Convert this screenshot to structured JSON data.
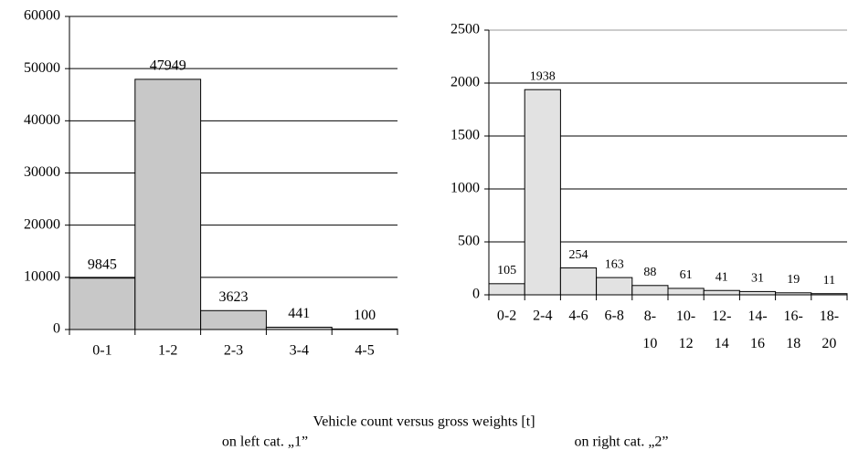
{
  "chart_data": [
    {
      "type": "bar",
      "categories": [
        "0-1",
        "1-2",
        "2-3",
        "3-4",
        "4-5"
      ],
      "values": [
        9845,
        47949,
        3623,
        441,
        100
      ],
      "color": "#c8c8c8",
      "ylim": [
        0,
        60000
      ],
      "yticks": [
        0,
        10000,
        20000,
        30000,
        40000,
        50000,
        60000
      ],
      "grid": true
    },
    {
      "type": "bar",
      "categories": [
        "0-2",
        "2-4",
        "4-6",
        "6-8",
        "8-10",
        "10-12",
        "12-14",
        "14-16",
        "16-18",
        "18-20"
      ],
      "values": [
        105,
        1938,
        254,
        163,
        88,
        61,
        41,
        31,
        19,
        11
      ],
      "color": "#e2e2e2",
      "ylim": [
        0,
        2500
      ],
      "yticks": [
        0,
        500,
        1000,
        1500,
        2000,
        2500
      ],
      "grid": true
    }
  ],
  "caption": {
    "title": "Vehicle count versus gross weights [t]",
    "left": "on left cat. „1”",
    "right": "on right cat. „2”"
  }
}
